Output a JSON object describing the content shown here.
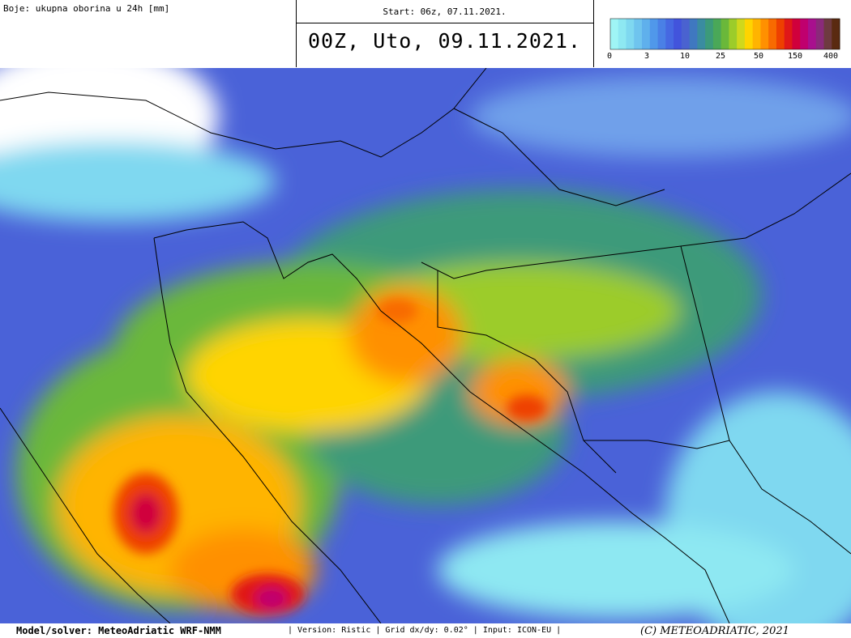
{
  "header": {
    "legend_title": "Boje: ukupna oborina u 24h [mm]",
    "start": "Start: 06z, 07.11.2021.",
    "valid": "00Z, Uto, 09.11.2021."
  },
  "colorbar": {
    "colors": [
      "#9ff5f5",
      "#8ee8f2",
      "#7fd8f0",
      "#6fc4ee",
      "#5fb0ec",
      "#5098ea",
      "#4a80e6",
      "#4668e2",
      "#4254dc",
      "#4a62d0",
      "#3f78c0",
      "#3a8ca0",
      "#3c9a7a",
      "#4aa858",
      "#6ab83a",
      "#9ccc2a",
      "#d0d81c",
      "#ffd400",
      "#ffb400",
      "#ff9000",
      "#f86a00",
      "#ee4000",
      "#e01818",
      "#d0003c",
      "#c0006e",
      "#a8108e",
      "#8a2a7a",
      "#6e3a40",
      "#5a2a10"
    ],
    "labels": [
      0,
      3,
      10,
      25,
      50,
      150,
      400
    ]
  },
  "footer": {
    "model": "Model/solver: MeteoAdriatic WRF-NMM",
    "info": "| Version: Ristic | Grid dx/dy: 0.02° | Input: ICON-EU |",
    "copyright": "(C) METEOADRIATIC, 2021"
  }
}
